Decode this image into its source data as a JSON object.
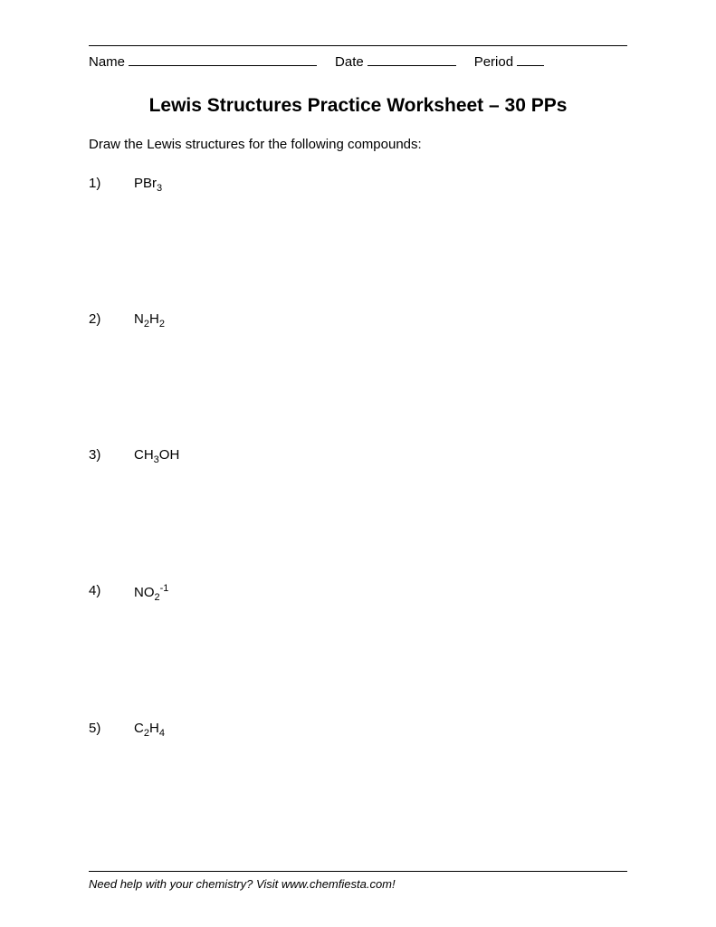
{
  "header": {
    "name_label": "Name",
    "date_label": "Date",
    "period_label": "Period"
  },
  "title": "Lewis Structures Practice Worksheet – 30 PPs",
  "instructions": "Draw the Lewis structures for the following compounds:",
  "problems": [
    {
      "number": "1)",
      "formula_parts": [
        {
          "t": "PBr"
        },
        {
          "sub": "3"
        }
      ]
    },
    {
      "number": "2)",
      "formula_parts": [
        {
          "t": "N"
        },
        {
          "sub": "2"
        },
        {
          "t": "H"
        },
        {
          "sub": "2"
        }
      ]
    },
    {
      "number": "3)",
      "formula_parts": [
        {
          "t": "CH"
        },
        {
          "sub": "3"
        },
        {
          "t": "OH"
        }
      ]
    },
    {
      "number": "4)",
      "formula_parts": [
        {
          "t": "NO"
        },
        {
          "sub": "2"
        },
        {
          "sup": "-1"
        }
      ]
    },
    {
      "number": "5)",
      "formula_parts": [
        {
          "t": "C"
        },
        {
          "sub": "2"
        },
        {
          "t": "H"
        },
        {
          "sub": "4"
        }
      ]
    }
  ],
  "footer": "Need help with your chemistry?  Visit www.chemfiesta.com!"
}
